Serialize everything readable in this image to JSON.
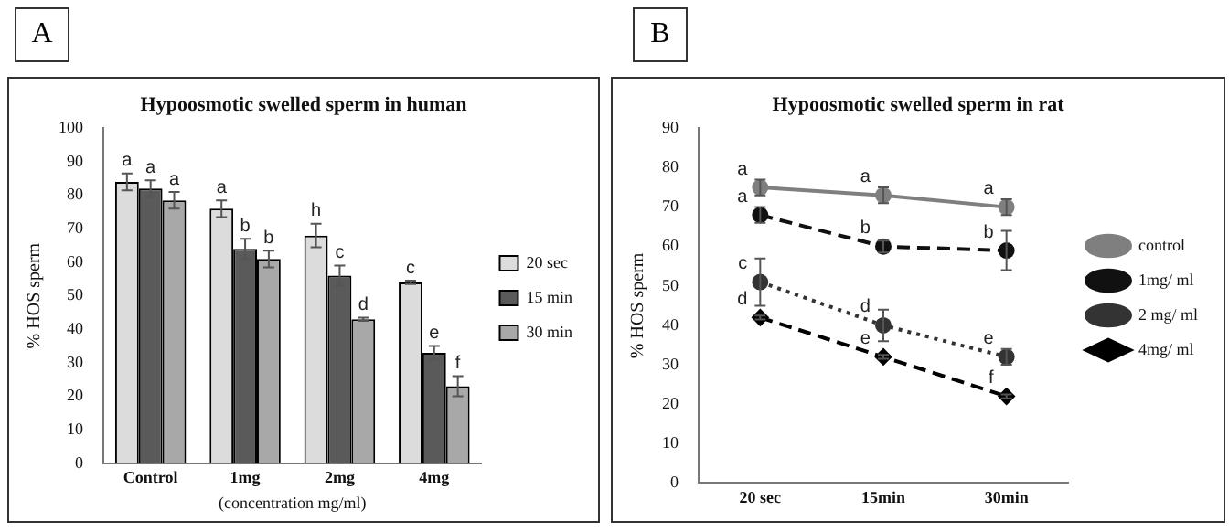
{
  "chart_data": [
    {
      "type": "bar",
      "title": "Hypoosmotic swelled sperm in human",
      "xlabel": "(concentration mg/ml)",
      "ylabel": "% HOS sperm",
      "categories": [
        "Control",
        "1mg",
        "2mg",
        "4mg"
      ],
      "series": [
        {
          "name": "20 sec",
          "color": "#dcdcdc",
          "values": [
            84,
            76,
            68,
            54
          ],
          "errors": [
            2.5,
            2.5,
            3.5,
            0.5
          ],
          "value_labels": [
            "a",
            "a",
            "h",
            "c"
          ]
        },
        {
          "name": "15 min",
          "color": "#5a5a5a",
          "values": [
            82,
            64,
            56,
            33
          ],
          "errors": [
            2.5,
            3,
            3,
            2
          ],
          "value_labels": [
            "a",
            "b",
            "c",
            "e"
          ]
        },
        {
          "name": "30 min",
          "color": "#a8a8a8",
          "values": [
            78.5,
            61,
            43,
            23
          ],
          "errors": [
            2.5,
            2.5,
            0.5,
            3
          ],
          "value_labels": [
            "a",
            "b",
            "d",
            "f"
          ]
        }
      ],
      "ylim": [
        0,
        100
      ],
      "yticks": [
        0,
        10,
        20,
        30,
        40,
        50,
        60,
        70,
        80,
        90,
        100
      ],
      "legend": "right",
      "annotations": [
        "A"
      ]
    },
    {
      "type": "line",
      "title": "Hypoosmotic swelled sperm in rat",
      "ylabel": "% HOS sperm",
      "categories": [
        "20 sec",
        "15min",
        "30min"
      ],
      "series": [
        {
          "name": "control",
          "color": "#7f7f7f",
          "values": [
            75,
            73,
            70
          ],
          "errors": [
            2,
            2,
            2
          ],
          "line_style": "solid",
          "marker": "circle",
          "value_labels": [
            "a",
            "a",
            "a"
          ]
        },
        {
          "name": "1mg/ ml",
          "color": "#111111",
          "values": [
            68,
            60,
            59
          ],
          "errors": [
            2,
            1.5,
            5
          ],
          "line_style": "dashed",
          "marker": "circle",
          "value_labels": [
            "a",
            "b",
            "b"
          ]
        },
        {
          "name": "2 mg/ ml",
          "color": "#333333",
          "values": [
            51,
            40,
            32
          ],
          "errors": [
            6,
            4,
            2
          ],
          "line_style": "dotted",
          "marker": "circle",
          "value_labels": [
            "c",
            "d",
            "e"
          ]
        },
        {
          "name": "4mg/ ml",
          "color": "#000000",
          "values": [
            42,
            32,
            22
          ],
          "errors": [
            0.5,
            0.5,
            0.5
          ],
          "line_style": "dashed",
          "marker": "diamond",
          "value_labels": [
            "d",
            "e",
            "f"
          ]
        }
      ],
      "ylim": [
        0,
        90
      ],
      "yticks": [
        0,
        10,
        20,
        30,
        40,
        50,
        60,
        70,
        80,
        90
      ],
      "legend": "right",
      "annotations": [
        "B"
      ]
    }
  ]
}
